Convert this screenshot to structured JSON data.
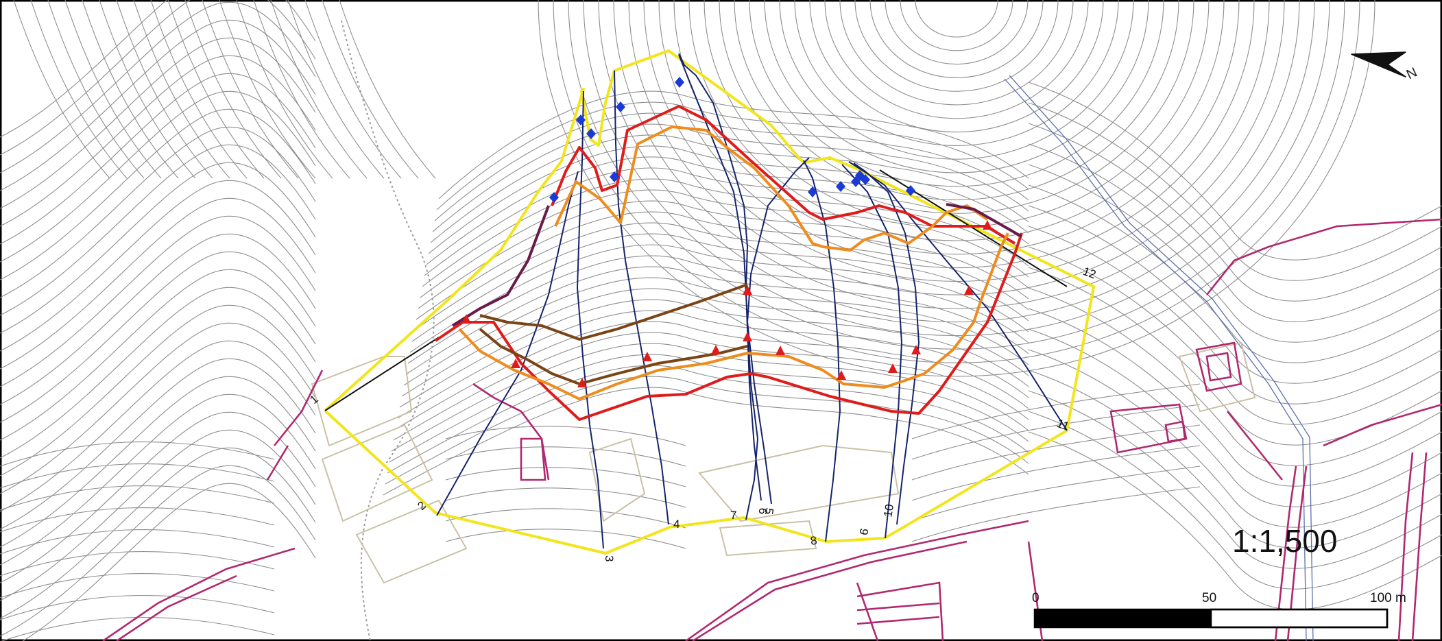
{
  "map": {
    "scale_ratio": "1:1,500",
    "scale_bar": {
      "ticks": [
        "0",
        "50",
        "100 m"
      ]
    },
    "north_label": "N",
    "section_labels": [
      "1",
      "2",
      "3",
      "4",
      "5",
      "6",
      "7",
      "8",
      "9",
      "10",
      "11",
      "12"
    ],
    "colors": {
      "contour": "#8a8a8a",
      "road": "#b0286f",
      "boundary": "#f2e51c",
      "section_line": "#15236b",
      "line_red": "#e01b1b",
      "line_orange": "#ee8c1e",
      "line_brown": "#7b4416",
      "marker_blue": "#1c3ad6",
      "marker_red": "#e01b1b",
      "stream": "#5a6fa8"
    }
  }
}
